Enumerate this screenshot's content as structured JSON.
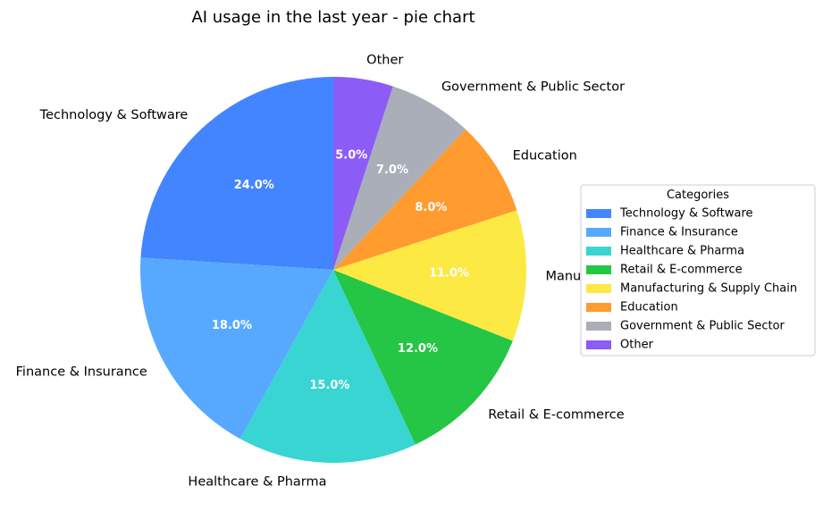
{
  "chart_data": {
    "type": "pie",
    "title": "AI usage in the last year - pie chart",
    "categories": [
      "Technology & Software",
      "Finance & Insurance",
      "Healthcare & Pharma",
      "Retail & E-commerce",
      "Manufacturing & Supply Chain",
      "Education",
      "Government & Public Sector",
      "Other"
    ],
    "values": [
      24.0,
      18.0,
      15.0,
      12.0,
      11.0,
      8.0,
      7.0,
      5.0
    ],
    "value_labels": [
      "24.0%",
      "18.0%",
      "15.0%",
      "12.0%",
      "11.0%",
      "8.0%",
      "7.0%",
      "5.0%"
    ],
    "colors": [
      "#4285ff",
      "#57a9ff",
      "#38d5d2",
      "#25c545",
      "#fce944",
      "#ff9b2f",
      "#aaaeb9",
      "#8b5cf6"
    ],
    "start_angle_deg": 90,
    "direction": "counterclockwise",
    "legend": {
      "title": "Categories",
      "placement": "right"
    }
  }
}
